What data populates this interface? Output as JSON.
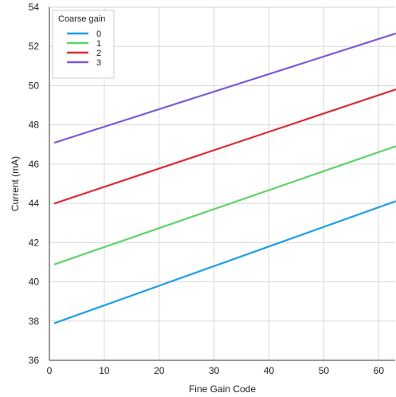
{
  "chart_data": {
    "type": "line",
    "title": "",
    "xlabel": "Fine Gain Code",
    "ylabel": "Current (mA)",
    "xlim": [
      0,
      63
    ],
    "ylim": [
      36,
      54
    ],
    "xticks": [
      0,
      10,
      20,
      30,
      40,
      50,
      60
    ],
    "yticks": [
      36,
      38,
      40,
      42,
      44,
      46,
      48,
      50,
      52,
      54
    ],
    "grid": true,
    "legend": {
      "title": "Coarse gain",
      "placement": "top-left"
    },
    "x": [
      1,
      63
    ],
    "series": [
      {
        "name": "0",
        "color": "#1f9fe6",
        "values": [
          37.9,
          44.1
        ]
      },
      {
        "name": "1",
        "color": "#5fd36a",
        "values": [
          40.9,
          46.9
        ]
      },
      {
        "name": "2",
        "color": "#de2b34",
        "values": [
          44.0,
          49.8
        ]
      },
      {
        "name": "3",
        "color": "#7b5ad6",
        "values": [
          47.1,
          52.65
        ]
      }
    ]
  }
}
